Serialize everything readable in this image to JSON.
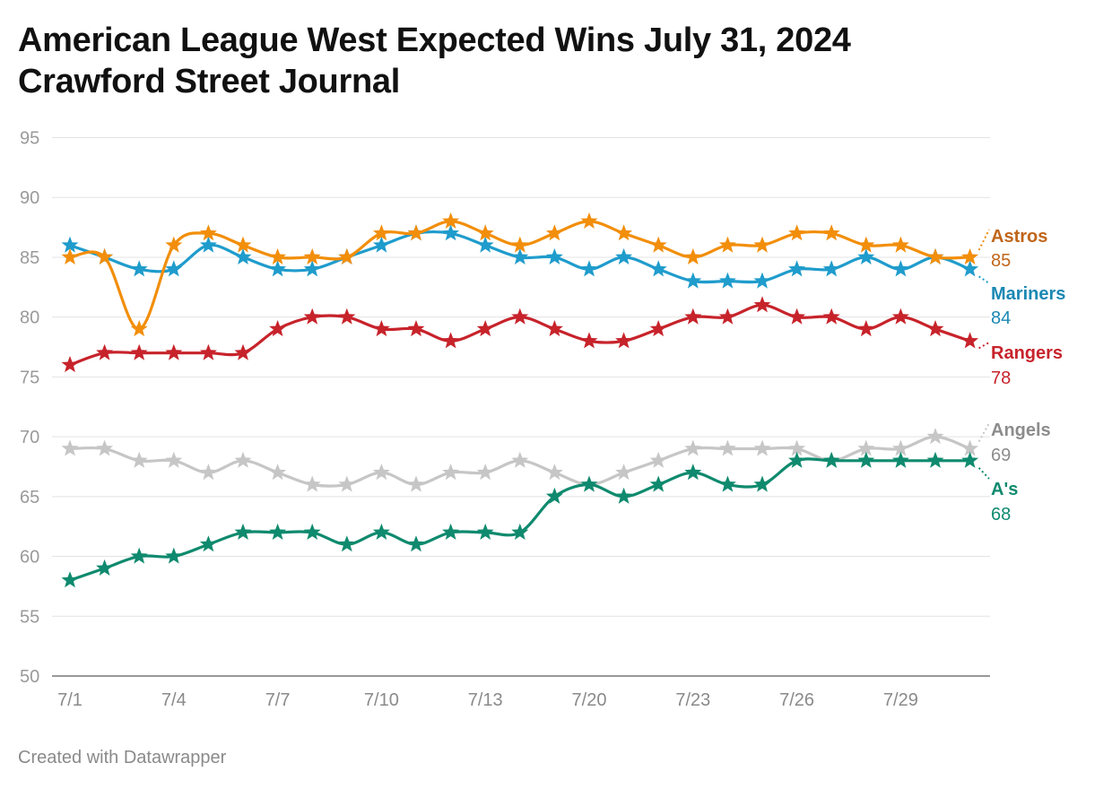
{
  "title_line1": "American League West Expected Wins July 31, 2024",
  "title_line2": "Crawford Street Journal",
  "credit": "Created with Datawrapper",
  "chart_data": {
    "type": "line",
    "marker": "star",
    "categories": [
      "7/1",
      "7/2",
      "7/3",
      "7/4",
      "7/5",
      "7/6",
      "7/7",
      "7/8",
      "7/9",
      "7/10",
      "7/11",
      "7/12",
      "7/13",
      "7/14",
      "7/19",
      "7/20",
      "7/21",
      "7/22",
      "7/23",
      "7/24",
      "7/25",
      "7/26",
      "7/27",
      "7/28",
      "7/29",
      "7/30",
      "7/31"
    ],
    "x_tick_labels": [
      "7/1",
      "7/4",
      "7/7",
      "7/10",
      "7/13",
      "7/20",
      "7/23",
      "7/26",
      "7/29"
    ],
    "y_ticks": [
      50,
      55,
      60,
      65,
      70,
      75,
      80,
      85,
      90,
      95
    ],
    "ylim": [
      50,
      95
    ],
    "grid": true,
    "series": [
      {
        "name": "Astros",
        "color": "#f28e0a",
        "label_color": "#c0651a",
        "final": "85",
        "values": [
          85,
          85,
          79,
          86,
          87,
          86,
          85,
          85,
          85,
          87,
          87,
          88,
          87,
          86,
          87,
          88,
          87,
          86,
          85,
          86,
          86,
          87,
          87,
          86,
          86,
          85,
          85
        ]
      },
      {
        "name": "Mariners",
        "color": "#1f9ccc",
        "label_color": "#1a88b3",
        "final": "84",
        "values": [
          86,
          85,
          84,
          84,
          86,
          85,
          84,
          84,
          85,
          86,
          87,
          87,
          86,
          85,
          85,
          84,
          85,
          84,
          83,
          83,
          83,
          84,
          84,
          85,
          84,
          85,
          84
        ]
      },
      {
        "name": "Rangers",
        "color": "#c7232b",
        "label_color": "#c7232b",
        "final": "78",
        "values": [
          76,
          77,
          77,
          77,
          77,
          77,
          79,
          80,
          80,
          79,
          79,
          78,
          79,
          80,
          79,
          78,
          78,
          79,
          80,
          80,
          81,
          80,
          80,
          79,
          80,
          79,
          78
        ]
      },
      {
        "name": "Angels",
        "color": "#c6c6c6",
        "label_color": "#8c8c8c",
        "final": "69",
        "values": [
          69,
          69,
          68,
          68,
          67,
          68,
          67,
          66,
          66,
          67,
          66,
          67,
          67,
          68,
          67,
          66,
          67,
          68,
          69,
          69,
          69,
          69,
          68,
          69,
          69,
          70,
          69
        ]
      },
      {
        "name": "A's",
        "color": "#0f8a6e",
        "label_color": "#0f8a6e",
        "final": "68",
        "values": [
          58,
          59,
          60,
          60,
          61,
          62,
          62,
          62,
          61,
          62,
          61,
          62,
          62,
          62,
          65,
          66,
          65,
          66,
          67,
          66,
          66,
          68,
          68,
          68,
          68,
          68,
          68
        ]
      }
    ]
  }
}
